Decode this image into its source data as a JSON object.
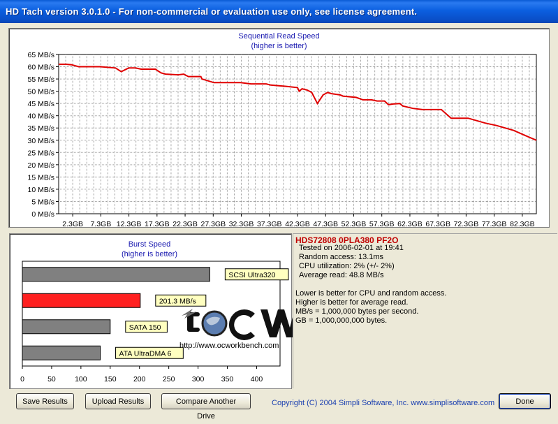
{
  "window": {
    "title": "HD Tach version 3.0.1.0  - For non-commercial or evaluation use only, see license agreement."
  },
  "read_chart": {
    "title": "Sequential Read Speed",
    "subtitle": "(higher is better)"
  },
  "burst_chart": {
    "title": "Burst Speed",
    "subtitle": "(higher is better)"
  },
  "drive": {
    "name": "HDS72808 0PLA380 PF2O",
    "tested_on": "Tested on 2006-02-01 at 19:41",
    "random_access": "Random access: 13.1ms",
    "cpu_utilization": "CPU utilization: 2% (+/- 2%)",
    "average_read": "Average read: 48.8 MB/s"
  },
  "notes": {
    "line1": "Lower is better for CPU and random access.",
    "line2": "Higher is better for average read.",
    "line3": "MB/s = 1,000,000 bytes per second.",
    "line4": "GB = 1,000,000,000 bytes."
  },
  "watermark": {
    "url": "http://www.ocworkbench.com"
  },
  "buttons": {
    "save": "Save Results",
    "upload": "Upload Results",
    "compare": "Compare Another Drive",
    "done": "Done"
  },
  "copyright": "Copyright (C) 2004 Simpli Software, Inc. www.simplisoftware.com",
  "colors": {
    "line": "#e00000",
    "bar_highlight": "#ff2020",
    "bar_ref": "#808080",
    "grid": "#a0a0a0"
  },
  "chart_data": [
    {
      "type": "line",
      "title": "Sequential Read Speed",
      "subtitle": "(higher is better)",
      "ylim": [
        0,
        65
      ],
      "y_ticks": [
        "0 MB/s",
        "5 MB/s",
        "10 MB/s",
        "15 MB/s",
        "20 MB/s",
        "25 MB/s",
        "30 MB/s",
        "35 MB/s",
        "40 MB/s",
        "45 MB/s",
        "50 MB/s",
        "55 MB/s",
        "60 MB/s",
        "65 MB/s"
      ],
      "x_ticks": [
        "2.3GB",
        "7.3GB",
        "12.3GB",
        "17.3GB",
        "22.3GB",
        "27.3GB",
        "32.3GB",
        "37.3GB",
        "42.3GB",
        "47.3GB",
        "52.3GB",
        "57.3GB",
        "62.3GB",
        "67.3GB",
        "72.3GB",
        "77.3GB",
        "82.3GB"
      ],
      "xlim": [
        0,
        84
      ],
      "grid": true,
      "series": [
        {
          "x": [
            0,
            1.3,
            2.3,
            3.5,
            5,
            7.3,
            10,
            11,
            12.3,
            13.5,
            14.5,
            17,
            18,
            18.8,
            21,
            22,
            22.8,
            25,
            25.2,
            27.3,
            30,
            32,
            33.8,
            36,
            36.5,
            37.3,
            40,
            42,
            42.3,
            42.8,
            43.7,
            44.5,
            45.5,
            46.5,
            47.3,
            48,
            49.5,
            50,
            52.3,
            53.5,
            55,
            56,
            57.3,
            58,
            58.8,
            60,
            60.5,
            62.3,
            64,
            66,
            67.3,
            69,
            72,
            75,
            77,
            80,
            82,
            84
          ],
          "y": [
            61,
            61,
            60.8,
            60,
            60,
            60,
            59.5,
            58,
            59.5,
            59.5,
            59,
            59,
            57.5,
            57,
            56.7,
            57,
            56,
            56,
            55,
            53.5,
            53.5,
            53.5,
            53,
            53,
            53,
            52.5,
            52,
            51.5,
            50,
            51,
            50.5,
            49.5,
            45,
            48.5,
            49.5,
            49,
            48.5,
            48,
            47.5,
            46.5,
            46.5,
            46,
            46,
            44.5,
            44.8,
            45,
            44,
            43,
            42.5,
            42.5,
            42.5,
            39,
            39,
            37,
            36,
            34,
            32,
            30
          ]
        }
      ]
    },
    {
      "type": "bar",
      "title": "Burst Speed",
      "subtitle": "(higher is better)",
      "orientation": "horizontal",
      "categories": [
        "SCSI Ultra320",
        "201.3 MB/s",
        "SATA 150",
        "ATA UltraDMA 6"
      ],
      "values": [
        320,
        201.3,
        150,
        133
      ],
      "highlight_index": 1,
      "xlim": [
        0,
        440
      ],
      "x_ticks": [
        "0",
        "50",
        "100",
        "150",
        "200",
        "250",
        "300",
        "350",
        "400"
      ],
      "grid": false
    }
  ]
}
